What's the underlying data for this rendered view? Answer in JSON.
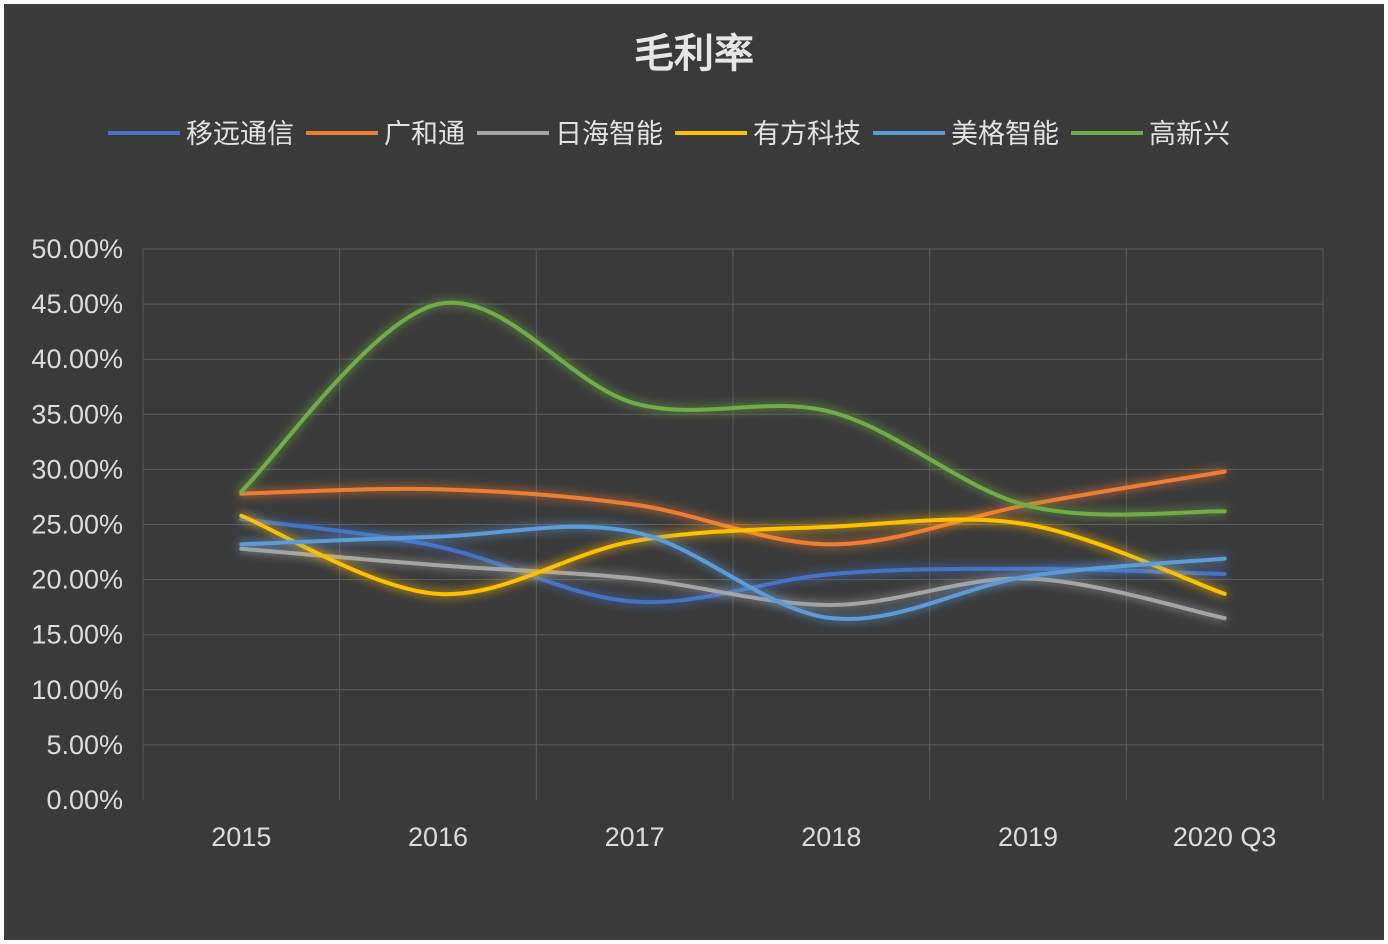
{
  "chart_data": {
    "type": "line",
    "title": "毛利率",
    "xlabel": "",
    "ylabel": "",
    "categories": [
      "2015",
      "2016",
      "2017",
      "2018",
      "2019",
      "2020 Q3"
    ],
    "y_ticks": [
      "0.00%",
      "5.00%",
      "10.00%",
      "15.00%",
      "20.00%",
      "25.00%",
      "30.00%",
      "35.00%",
      "40.00%",
      "45.00%",
      "50.00%"
    ],
    "ylim": [
      0,
      50
    ],
    "y_unit": "%",
    "grid": true,
    "legend_position": "top",
    "smooth": true,
    "series": [
      {
        "name": "移远通信",
        "color": "#4472c4",
        "values": [
          25.5,
          23.0,
          18.0,
          20.5,
          21.0,
          20.5
        ]
      },
      {
        "name": "广和通",
        "color": "#ed7d31",
        "values": [
          27.8,
          28.2,
          26.8,
          23.2,
          26.8,
          29.8
        ]
      },
      {
        "name": "日海智能",
        "color": "#a5a5a5",
        "values": [
          22.8,
          21.3,
          20.1,
          17.7,
          20.1,
          16.5
        ]
      },
      {
        "name": "有方科技",
        "color": "#ffc000",
        "values": [
          25.8,
          18.7,
          23.5,
          24.8,
          25.0,
          18.7
        ]
      },
      {
        "name": "美格智能",
        "color": "#5b9bd5",
        "values": [
          23.2,
          23.9,
          24.3,
          16.5,
          20.3,
          21.9
        ]
      },
      {
        "name": "高新兴",
        "color": "#70ad47",
        "values": [
          28.0,
          45.0,
          36.0,
          35.2,
          26.7,
          26.2
        ]
      }
    ]
  }
}
